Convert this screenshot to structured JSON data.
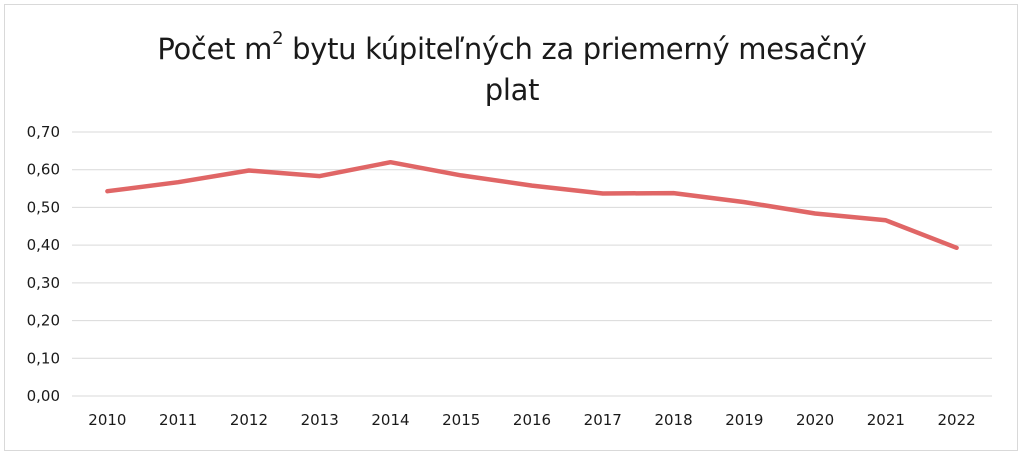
{
  "chart_data": {
    "type": "line",
    "title_parts": [
      "Počet m",
      "2",
      " bytu kúpiteľných za priemerný mesačný",
      "plat"
    ],
    "xlabel": "",
    "ylabel": "",
    "categories": [
      "2010",
      "2011",
      "2012",
      "2013",
      "2014",
      "2015",
      "2016",
      "2017",
      "2018",
      "2019",
      "2020",
      "2021",
      "2022"
    ],
    "series": [
      {
        "color": "#e06666",
        "values": [
          0.543,
          0.567,
          0.598,
          0.583,
          0.62,
          0.585,
          0.558,
          0.537,
          0.538,
          0.514,
          0.484,
          0.466,
          0.393
        ]
      }
    ],
    "ylim": [
      0,
      0.7
    ],
    "yticks": [
      0,
      0.1,
      0.2,
      0.3,
      0.4,
      0.5,
      0.6,
      0.7
    ],
    "ytick_labels": [
      "0,00",
      "0,10",
      "0,20",
      "0,30",
      "0,40",
      "0,50",
      "0,60",
      "0,70"
    ],
    "grid": true,
    "legend": "none",
    "gridline_color": "#d9d9d9"
  }
}
